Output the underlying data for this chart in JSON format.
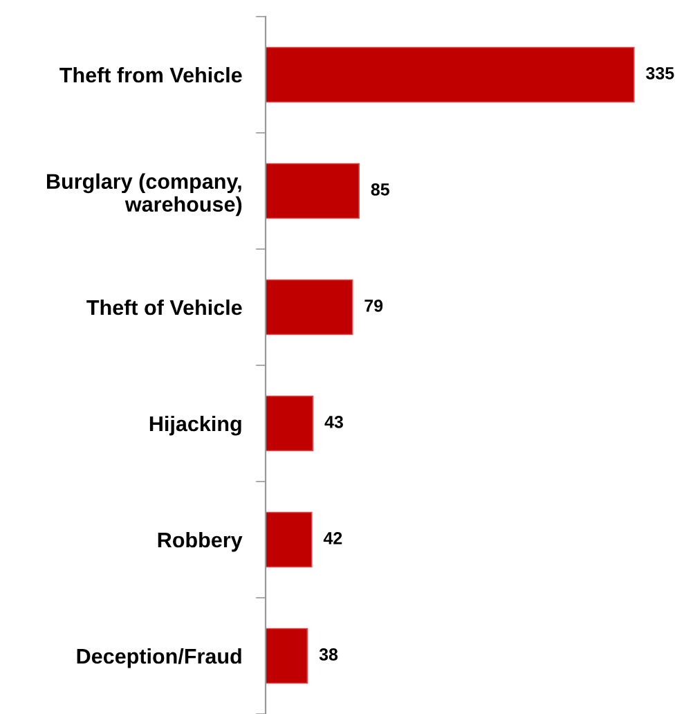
{
  "chart_data": {
    "type": "bar",
    "orientation": "horizontal",
    "categories": [
      "Theft from Vehicle",
      "Burglary (company,\nwarehouse)",
      "Theft of Vehicle",
      "Hijacking",
      "Robbery",
      "Deception/Fraud"
    ],
    "values": [
      335,
      85,
      79,
      43,
      42,
      38
    ],
    "color": "#c00000",
    "data_labels": true,
    "grid": false,
    "legend": false
  }
}
